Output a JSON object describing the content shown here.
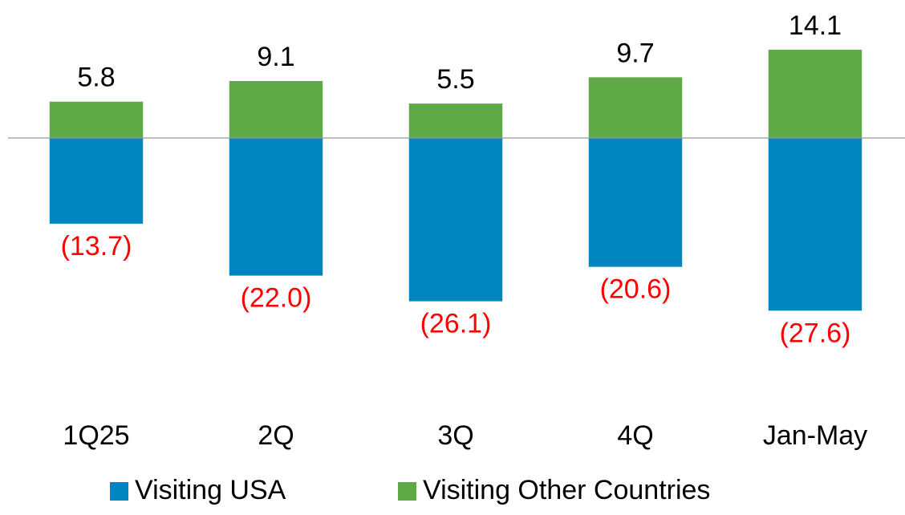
{
  "chart_data": {
    "type": "bar",
    "categories": [
      "1Q25",
      "2Q",
      "3Q",
      "4Q",
      "Jan-May"
    ],
    "series": [
      {
        "name": "Visiting USA",
        "color": "#0085c0",
        "label_color": "#ff0000",
        "values": [
          -13.7,
          -22.0,
          -26.1,
          -20.6,
          -27.6
        ],
        "value_labels": [
          "(13.7)",
          "(22.0)",
          "(26.1)",
          "(20.6)",
          "(27.6)"
        ]
      },
      {
        "name": "Visiting Other Countries",
        "color": "#5faa46",
        "label_color": "#000000",
        "values": [
          5.8,
          9.1,
          5.5,
          9.7,
          14.1
        ]
      }
    ],
    "ylim": [
      -30,
      20
    ]
  }
}
